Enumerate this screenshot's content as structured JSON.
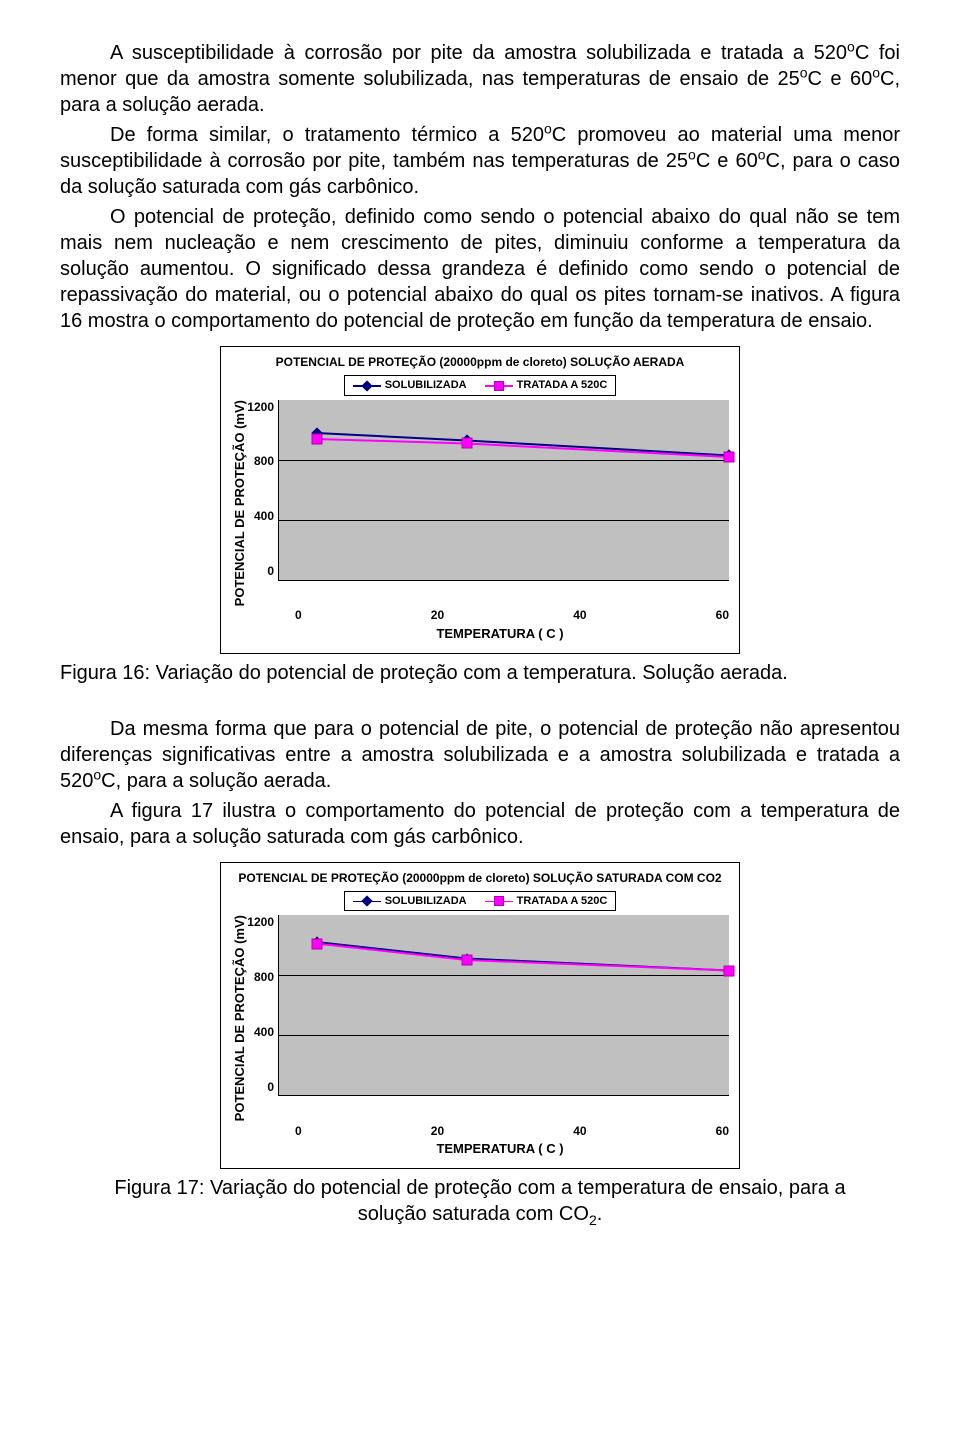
{
  "paragraphs": {
    "p1": "A susceptibilidade à corrosão por pite da amostra solubilizada e tratada a 520",
    "p1b": "C foi menor que da amostra somente solubilizada, nas temperaturas de ensaio de 25",
    "p1c": "C e 60",
    "p1d": "C, para a solução aerada.",
    "p2a": "De forma similar, o tratamento térmico a 520",
    "p2b": "C promoveu ao material uma menor susceptibilidade à corrosão por pite, também nas temperaturas de 25",
    "p2c": "C e 60",
    "p2d": "C, para o caso da solução saturada com gás carbônico.",
    "p3": "O potencial de proteção, definido como sendo o potencial abaixo do qual não se tem mais nem nucleação  e nem crescimento de pites, diminuiu conforme a temperatura da solução aumentou.  O significado dessa grandeza é definido como sendo o potencial de repassivação do material, ou o potencial abaixo do qual os pites tornam-se inativos.     A figura 16 mostra o comportamento do potencial de proteção em função da temperatura de ensaio.",
    "p4": "Da mesma forma que para o potencial de pite, o potencial de proteção não apresentou diferenças significativas entre a amostra solubilizada e a amostra solubilizada e tratada a 520",
    "p4b": "C, para a solução aerada.",
    "p5": "A figura 17 ilustra o comportamento do potencial de proteção com a temperatura de ensaio, para a solução saturada com gás carbônico."
  },
  "captions": {
    "fig16": "Figura 16: Variação do potencial de proteção com a temperatura.  Solução aerada.",
    "fig17a": "Figura 17: Variação do potencial de proteção com a temperatura de ensaio, para a",
    "fig17b": "solução saturada com CO",
    "fig17c": "."
  },
  "chart1": {
    "type": "line",
    "title": "POTENCIAL DE PROTEÇÃO (20000ppm de cloreto) SOLUÇÃO AERADA",
    "legend": {
      "s1": "SOLUBILIZADA",
      "s2": "TRATADA A 520C"
    },
    "ylabel": "POTENCIAL DE PROTEÇÃO (mV)",
    "xlabel": "TEMPERATURA ( C )",
    "ylim": [
      0,
      1200
    ],
    "ytick_step": 400,
    "xlim": [
      0,
      60
    ],
    "xtick_step": 20,
    "background_color": "#c0c0c0",
    "grid_color": "#000000",
    "series": {
      "solubilizada": {
        "color": "#000080",
        "marker": "diamond",
        "x": [
          5,
          25,
          60
        ],
        "y": [
          980,
          930,
          830
        ]
      },
      "tratada": {
        "color": "#ff00ff",
        "marker": "square",
        "x": [
          5,
          25,
          60
        ],
        "y": [
          940,
          910,
          820
        ]
      }
    },
    "yticks": [
      "1200",
      "800",
      "400",
      "0"
    ],
    "xticks": [
      "0",
      "20",
      "40",
      "60"
    ]
  },
  "chart2": {
    "type": "line",
    "title": "POTENCIAL DE PROTEÇÃO (20000ppm de cloreto) SOLUÇÃO SATURADA COM CO2",
    "legend": {
      "s1": "SOLUBILIZADA",
      "s2": "TRATADA A 520C"
    },
    "ylabel": "POTENCIAL DE PROTEÇÃO (mV)",
    "xlabel": "TEMPERATURA ( C )",
    "ylim": [
      0,
      1200
    ],
    "ytick_step": 400,
    "xlim": [
      0,
      60
    ],
    "xtick_step": 20,
    "background_color": "#c0c0c0",
    "grid_color": "#000000",
    "series": {
      "solubilizada": {
        "color": "#000080",
        "marker": "diamond",
        "x": [
          5,
          25,
          60
        ],
        "y": [
          1020,
          910,
          830
        ]
      },
      "tratada": {
        "color": "#ff00ff",
        "marker": "square",
        "x": [
          5,
          25,
          60
        ],
        "y": [
          1010,
          900,
          830
        ]
      }
    },
    "yticks": [
      "1200",
      "800",
      "400",
      "0"
    ],
    "xticks": [
      "0",
      "20",
      "40",
      "60"
    ]
  }
}
